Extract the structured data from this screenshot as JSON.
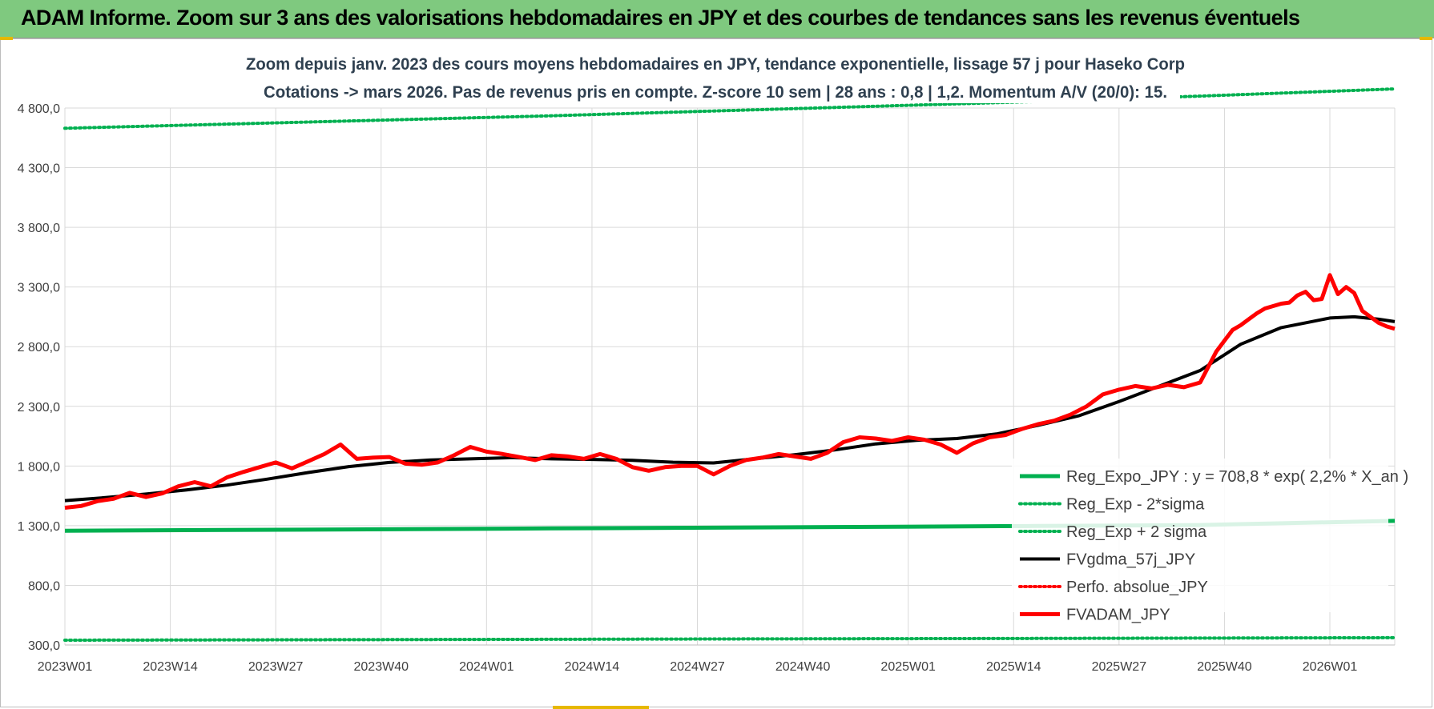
{
  "header": {
    "title": "ADAM Informe. Zoom sur 3 ans des valorisations hebdomadaires en JPY et des courbes de tendances sans les revenus éventuels"
  },
  "colors": {
    "banner": "#7fc97f",
    "green": "#00b050",
    "red": "#ff0000",
    "black": "#000000",
    "title_text": "#2f4050",
    "grid": "#d9d9d9"
  },
  "chart_data": {
    "type": "line",
    "title": "Zoom depuis janv. 2023 des cours moyens hebdomadaires en JPY, tendance exponentielle, lissage 57 j pour Haseko Corp",
    "subtitle": "Cotations -> mars 2026. Pas de revenus pris en compte. Z-score 10 sem | 28 ans : 0,8 | 1,2. Momentum A/V (20/0): 15.",
    "xlabel": "",
    "ylabel": "",
    "ylim": [
      300,
      4800
    ],
    "yticks": [
      "4 800,0",
      "4 300,0",
      "3 800,0",
      "3 300,0",
      "2 800,0",
      "2 300,0",
      "1 800,0",
      "1 300,0",
      "800,0",
      "300,0"
    ],
    "ytick_values": [
      4800,
      4300,
      3800,
      3300,
      2800,
      2300,
      1800,
      1300,
      800,
      300
    ],
    "categories": [
      "2023W01",
      "2023W14",
      "2023W27",
      "2023W40",
      "2024W01",
      "2024W14",
      "2024W27",
      "2024W40",
      "2025W01",
      "2025W14",
      "2025W27",
      "2025W40",
      "2026W01"
    ],
    "x_count": 165,
    "grid": true,
    "legend_position": "bottom-right",
    "series": [
      {
        "name": "Reg_Expo_JPY : y = 708,8 * exp( 2,2% *  X_an )",
        "style": "solid-thick",
        "color": "#00b050",
        "x": [
          0,
          20,
          40,
          60,
          80,
          100,
          120,
          140,
          164
        ],
        "y": [
          1258,
          1264,
          1270,
          1277,
          1283,
          1290,
          1297,
          1305,
          1340
        ]
      },
      {
        "name": "Reg_Exp - 2*sigma",
        "style": "dotted",
        "color": "#00b050",
        "x": [
          0,
          40,
          80,
          120,
          164
        ],
        "y": [
          340,
          345,
          350,
          355,
          361
        ]
      },
      {
        "name": "Reg_Exp + 2 sigma",
        "style": "dotted",
        "color": "#00b050",
        "x": [
          0,
          20,
          40,
          60,
          80,
          100,
          120,
          140,
          164
        ],
        "y": [
          4630,
          4665,
          4700,
          4735,
          4775,
          4815,
          4855,
          4900,
          4960
        ]
      },
      {
        "name": "FVgdma_57j_JPY",
        "style": "solid",
        "color": "#000000",
        "x": [
          0,
          5,
          10,
          15,
          20,
          25,
          30,
          35,
          40,
          45,
          50,
          55,
          60,
          65,
          70,
          75,
          80,
          85,
          90,
          95,
          100,
          105,
          110,
          115,
          120,
          125,
          130,
          135,
          140,
          145,
          150,
          153,
          156,
          159,
          162,
          164
        ],
        "y": [
          1510,
          1535,
          1565,
          1600,
          1640,
          1690,
          1745,
          1795,
          1830,
          1850,
          1860,
          1870,
          1860,
          1855,
          1848,
          1832,
          1826,
          1860,
          1895,
          1935,
          1985,
          2015,
          2030,
          2070,
          2140,
          2220,
          2340,
          2470,
          2600,
          2820,
          2960,
          3000,
          3040,
          3050,
          3030,
          3010
        ]
      },
      {
        "name": "Perfo. absolue_JPY",
        "style": "dotted",
        "color": "#ff0000",
        "x": [],
        "y": []
      },
      {
        "name": "FVADAM_JPY",
        "style": "solid-thick",
        "color": "#ff0000",
        "x": [
          0,
          2,
          4,
          6,
          8,
          10,
          12,
          14,
          16,
          18,
          20,
          22,
          24,
          26,
          28,
          30,
          32,
          34,
          36,
          38,
          40,
          42,
          44,
          46,
          48,
          50,
          52,
          54,
          56,
          58,
          60,
          62,
          64,
          66,
          68,
          70,
          72,
          74,
          76,
          78,
          80,
          82,
          84,
          86,
          88,
          90,
          92,
          94,
          96,
          98,
          100,
          102,
          104,
          106,
          108,
          110,
          112,
          114,
          116,
          118,
          120,
          122,
          124,
          126,
          128,
          130,
          132,
          134,
          136,
          138,
          140,
          141,
          142,
          143,
          144,
          145,
          146,
          147,
          148,
          149,
          150,
          151,
          152,
          153,
          154,
          155,
          156,
          157,
          158,
          159,
          160,
          161,
          162,
          163,
          164
        ],
        "y": [
          1450,
          1465,
          1505,
          1525,
          1575,
          1540,
          1570,
          1630,
          1665,
          1630,
          1705,
          1750,
          1790,
          1830,
          1780,
          1840,
          1900,
          1980,
          1860,
          1870,
          1875,
          1820,
          1810,
          1830,
          1890,
          1960,
          1920,
          1900,
          1875,
          1850,
          1890,
          1880,
          1860,
          1900,
          1860,
          1790,
          1760,
          1790,
          1800,
          1800,
          1730,
          1800,
          1850,
          1870,
          1900,
          1880,
          1860,
          1910,
          2000,
          2040,
          2030,
          2010,
          2040,
          2020,
          1980,
          1910,
          1990,
          2040,
          2060,
          2110,
          2150,
          2180,
          2230,
          2300,
          2400,
          2440,
          2470,
          2450,
          2480,
          2460,
          2500,
          2630,
          2760,
          2850,
          2940,
          2980,
          3030,
          3080,
          3120,
          3140,
          3160,
          3170,
          3230,
          3260,
          3190,
          3200,
          3400,
          3240,
          3300,
          3250,
          3100,
          3050,
          3000,
          2970,
          2950
        ]
      }
    ]
  }
}
